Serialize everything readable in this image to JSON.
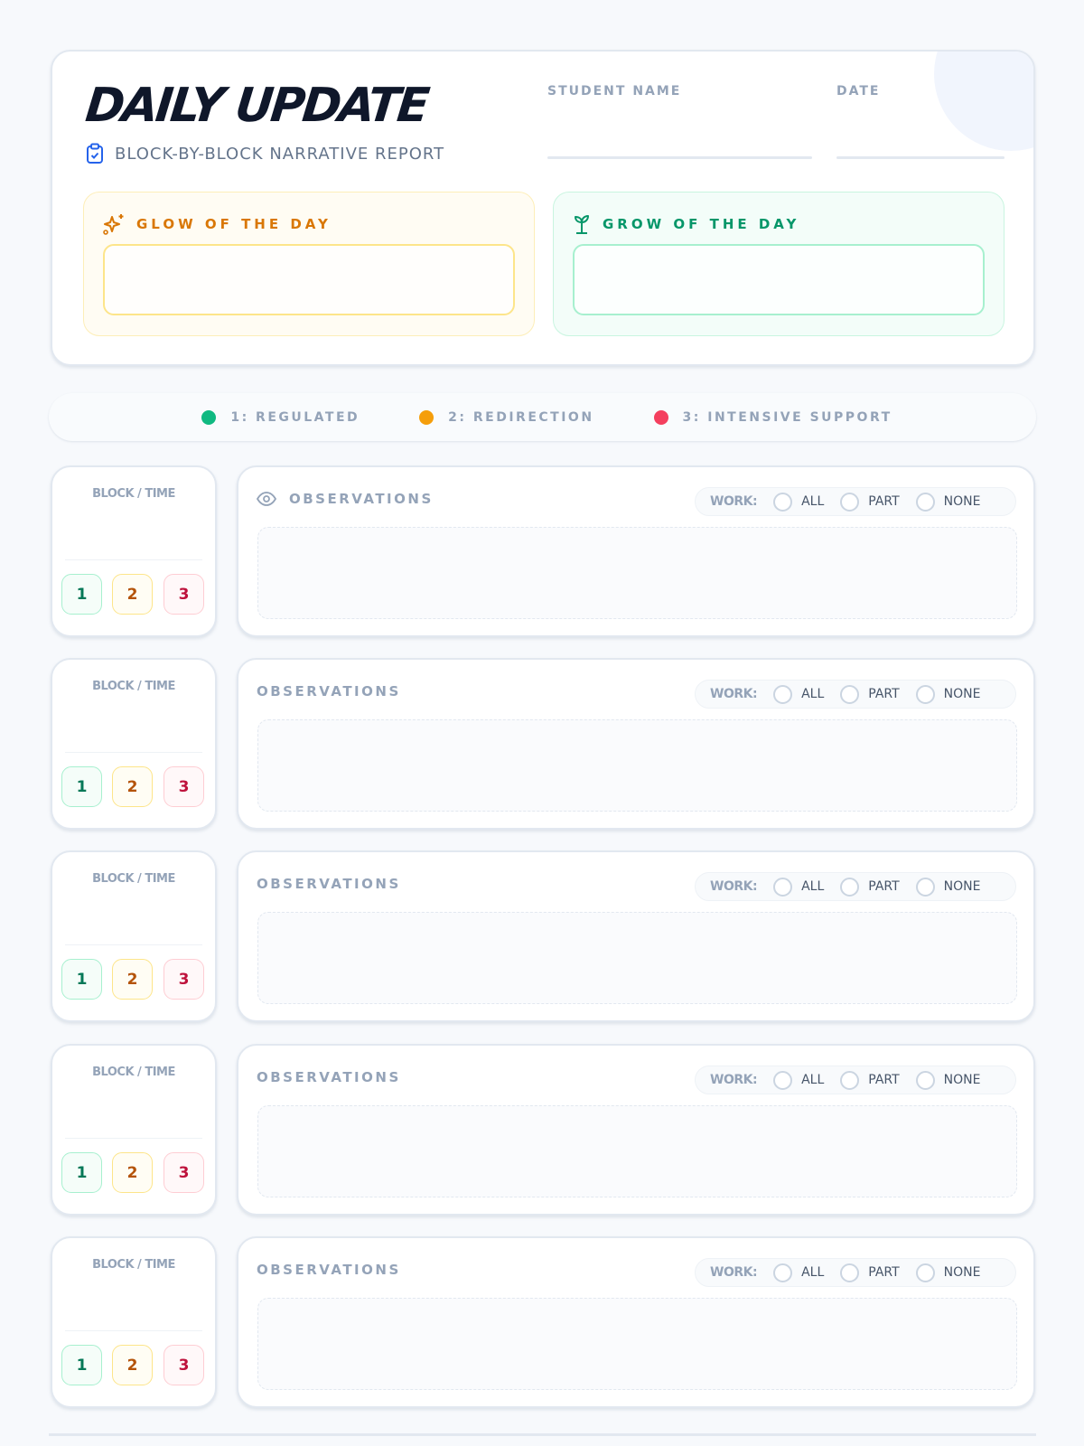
{
  "header": {
    "title": "DAILY UPDATE",
    "subtitle": "BLOCK-BY-BLOCK NARRATIVE REPORT",
    "student_name_label": "STUDENT NAME",
    "date_label": "DATE"
  },
  "glow": {
    "label": "GLOW OF THE DAY",
    "value": ""
  },
  "grow": {
    "label": "GROW OF THE DAY",
    "value": ""
  },
  "legend": [
    {
      "label": "1: REGULATED",
      "color": "#10b981"
    },
    {
      "label": "2: REDIRECTION",
      "color": "#f59e0b"
    },
    {
      "label": "3: INTENSIVE SUPPORT",
      "color": "#f43f5e"
    }
  ],
  "blocks": [
    {
      "block_label": "BLOCK / TIME",
      "levels": [
        "1",
        "2",
        "3"
      ],
      "observations_label": "OBSERVATIONS",
      "work_label": "WORK:",
      "work_options": [
        "ALL",
        "PART",
        "NONE"
      ],
      "show_eye_icon": true
    },
    {
      "block_label": "BLOCK / TIME",
      "levels": [
        "1",
        "2",
        "3"
      ],
      "observations_label": "OBSERVATIONS",
      "work_label": "WORK:",
      "work_options": [
        "ALL",
        "PART",
        "NONE"
      ]
    },
    {
      "block_label": "BLOCK / TIME",
      "levels": [
        "1",
        "2",
        "3"
      ],
      "observations_label": "OBSERVATIONS",
      "work_label": "WORK:",
      "work_options": [
        "ALL",
        "PART",
        "NONE"
      ]
    },
    {
      "block_label": "BLOCK / TIME",
      "levels": [
        "1",
        "2",
        "3"
      ],
      "observations_label": "OBSERVATIONS",
      "work_label": "WORK:",
      "work_options": [
        "ALL",
        "PART",
        "NONE"
      ]
    },
    {
      "block_label": "BLOCK / TIME",
      "levels": [
        "1",
        "2",
        "3"
      ],
      "observations_label": "OBSERVATIONS",
      "work_label": "WORK:",
      "work_options": [
        "ALL",
        "PART",
        "NONE"
      ]
    }
  ]
}
